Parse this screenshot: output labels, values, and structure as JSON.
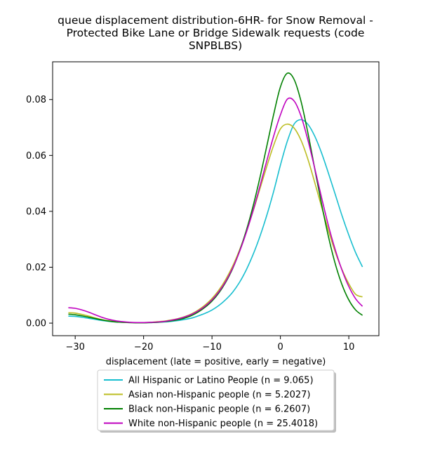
{
  "chart_data": {
    "type": "line",
    "title_lines": [
      "queue displacement distribution-6HR-  for Snow Removal -",
      "Protected Bike Lane or Bridge Sidewalk  requests (code",
      "SNPBLBS)"
    ],
    "xlabel": "displacement (late = positive, early = negative)",
    "ylabel": "",
    "xlim": [
      -33.3,
      14.4
    ],
    "ylim": [
      -0.0045,
      0.0935
    ],
    "x_ticks": [
      -30,
      -20,
      -10,
      0,
      10
    ],
    "x_tick_labels": [
      "−30",
      "−20",
      "−10",
      "0",
      "10"
    ],
    "y_ticks": [
      0.0,
      0.02,
      0.04,
      0.06,
      0.08
    ],
    "y_tick_labels": [
      "0.00",
      "0.02",
      "0.04",
      "0.06",
      "0.08"
    ],
    "grid": false,
    "legend_position": "below-center",
    "x": [
      -31,
      -30,
      -29,
      -28,
      -27,
      -26,
      -25,
      -24,
      -23,
      -22,
      -21,
      -20,
      -19,
      -18,
      -17,
      -16,
      -15,
      -14,
      -13,
      -12,
      -11,
      -10,
      -9,
      -8,
      -7,
      -6,
      -5,
      -4,
      -3,
      -2,
      -1,
      0,
      1,
      2,
      3,
      4,
      5,
      6,
      7,
      8,
      9,
      10,
      11,
      12
    ],
    "series": [
      {
        "name": "All Hispanic or Latino People (n = 9.065)",
        "color": "#17becf",
        "values": [
          0.0025,
          0.0024,
          0.0021,
          0.0017,
          0.0013,
          0.0009,
          0.0006,
          0.0004,
          0.0003,
          0.0002,
          0.0002,
          0.0002,
          0.0002,
          0.0003,
          0.0004,
          0.0006,
          0.0009,
          0.0013,
          0.0018,
          0.0026,
          0.0035,
          0.0047,
          0.0063,
          0.0084,
          0.011,
          0.0145,
          0.019,
          0.0245,
          0.031,
          0.0385,
          0.047,
          0.0565,
          0.065,
          0.0712,
          0.0728,
          0.0712,
          0.067,
          0.061,
          0.0538,
          0.0462,
          0.0385,
          0.0315,
          0.0252,
          0.0201
        ]
      },
      {
        "name": "Asian non-Hispanic people (n = 5.2027)",
        "color": "#bcbd22",
        "values": [
          0.0037,
          0.0036,
          0.0031,
          0.0025,
          0.0018,
          0.0012,
          0.0008,
          0.0005,
          0.0003,
          0.0002,
          0.0002,
          0.0002,
          0.0003,
          0.0005,
          0.0007,
          0.0011,
          0.0016,
          0.0023,
          0.0033,
          0.0047,
          0.0065,
          0.0088,
          0.0118,
          0.0156,
          0.0203,
          0.026,
          0.0326,
          0.04,
          0.048,
          0.056,
          0.0635,
          0.0695,
          0.0712,
          0.0698,
          0.0655,
          0.0588,
          0.0505,
          0.0418,
          0.0333,
          0.0256,
          0.0192,
          0.0141,
          0.0103,
          0.0094
        ]
      },
      {
        "name": "Black non-Hispanic people (n = 6.2607)",
        "color": "#008000",
        "values": [
          0.0032,
          0.003,
          0.0026,
          0.0021,
          0.0016,
          0.0011,
          0.0007,
          0.0004,
          0.0003,
          0.0002,
          0.0001,
          0.0001,
          0.0002,
          0.0003,
          0.0005,
          0.0008,
          0.0012,
          0.0018,
          0.0027,
          0.004,
          0.0057,
          0.0079,
          0.0108,
          0.0146,
          0.0194,
          0.0256,
          0.033,
          0.0418,
          0.052,
          0.0632,
          0.0745,
          0.0845,
          0.0894,
          0.0872,
          0.0795,
          0.0683,
          0.0555,
          0.0428,
          0.0312,
          0.0214,
          0.0138,
          0.0083,
          0.0047,
          0.0028
        ]
      },
      {
        "name": "White non-Hispanic people (n = 25.4018)",
        "color": "#bf00bf",
        "values": [
          0.0055,
          0.0053,
          0.0047,
          0.0039,
          0.0029,
          0.002,
          0.0013,
          0.0008,
          0.0005,
          0.0003,
          0.0002,
          0.0002,
          0.0003,
          0.0004,
          0.0006,
          0.001,
          0.0015,
          0.0022,
          0.0031,
          0.0044,
          0.0061,
          0.0083,
          0.0112,
          0.0149,
          0.0196,
          0.0254,
          0.0323,
          0.0402,
          0.0489,
          0.058,
          0.0668,
          0.0745,
          0.0801,
          0.0795,
          0.0742,
          0.0657,
          0.0556,
          0.0451,
          0.0351,
          0.0264,
          0.019,
          0.0131,
          0.0087,
          0.006
        ]
      }
    ]
  }
}
